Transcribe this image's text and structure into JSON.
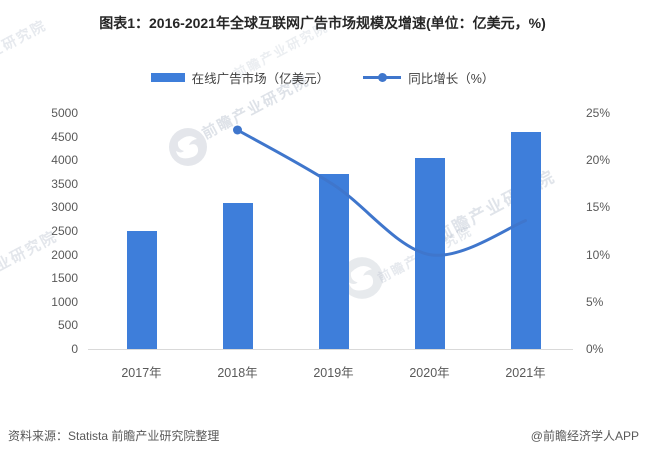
{
  "title": "图表1：2016-2021年全球互联网广告市场规模及增速(单位：亿美元，%)",
  "legend": {
    "bar_label": "在线广告市场（亿美元）",
    "line_label": "同比增长（%）"
  },
  "source": "资料来源：Statista 前瞻产业研究院整理",
  "credit": "@前瞻经济学人APP",
  "watermark": {
    "text": "前瞻产业研究院",
    "logo": "qianzhan-bird-logo"
  },
  "colors": {
    "bar": "#3E7EDA",
    "line": "#3F76CC",
    "axis_text": "#595959",
    "title_text": "#262626",
    "baseline": "#D9D9D9",
    "watermark": "#a9b4c4"
  },
  "chart_data": {
    "type": "bar+line",
    "title": "图表1：2016-2021年全球互联网广告市场规模及增速(单位：亿美元，%)",
    "categories": [
      "2017年",
      "2018年",
      "2019年",
      "2020年",
      "2021年"
    ],
    "series": [
      {
        "name": "在线广告市场（亿美元）",
        "type": "bar",
        "axis": "left",
        "values": [
          2500,
          3100,
          3700,
          4050,
          4600
        ]
      },
      {
        "name": "同比增长（%）",
        "type": "line",
        "axis": "right",
        "categories": [
          "2018年",
          "2019年",
          "2020年",
          "2021年"
        ],
        "values": [
          23.2,
          17.4,
          10.0,
          13.6
        ]
      }
    ],
    "left_axis": {
      "min": 0,
      "max": 5000,
      "step": 500,
      "tick_labels": [
        "0",
        "500",
        "1000",
        "1500",
        "2000",
        "2500",
        "3000",
        "3500",
        "4000",
        "4500",
        "5000"
      ]
    },
    "right_axis": {
      "min": 0,
      "max": 25,
      "step": 5,
      "tick_labels": [
        "0%",
        "5%",
        "10%",
        "15%",
        "20%",
        "25%"
      ]
    },
    "grid": false,
    "legend_position": "top"
  }
}
